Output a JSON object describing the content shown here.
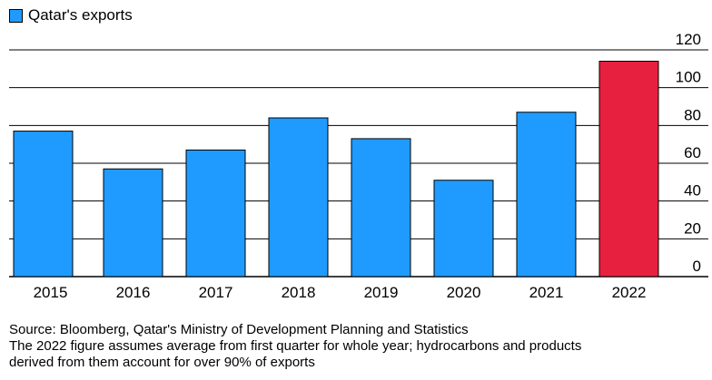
{
  "legend": {
    "label": "Qatar's exports",
    "color": "#1f9bff"
  },
  "chart_data": {
    "type": "bar",
    "title": "",
    "xlabel": "",
    "ylabel": "",
    "categories": [
      "2015",
      "2016",
      "2017",
      "2018",
      "2019",
      "2020",
      "2021",
      "2022"
    ],
    "series": [
      {
        "name": "Qatar's exports",
        "values": [
          77,
          57,
          67,
          84,
          73,
          51,
          87,
          114
        ]
      }
    ],
    "highlight": {
      "category": "2022",
      "color": "#e8203f"
    },
    "bar_color": "#1f9bff",
    "ylim": [
      0,
      120
    ],
    "yticks": [
      0,
      20,
      40,
      60,
      80,
      100,
      120
    ],
    "y_axis_position": "right",
    "grid": true,
    "legend_position": "top-left"
  },
  "footer": {
    "source": "Source: Bloomberg, Qatar's Ministry of Development Planning and Statistics",
    "note_line1": "The 2022 figure assumes average from first quarter for whole year; hydrocarbons and products",
    "note_line2": "derived from them account for over 90% of exports"
  }
}
